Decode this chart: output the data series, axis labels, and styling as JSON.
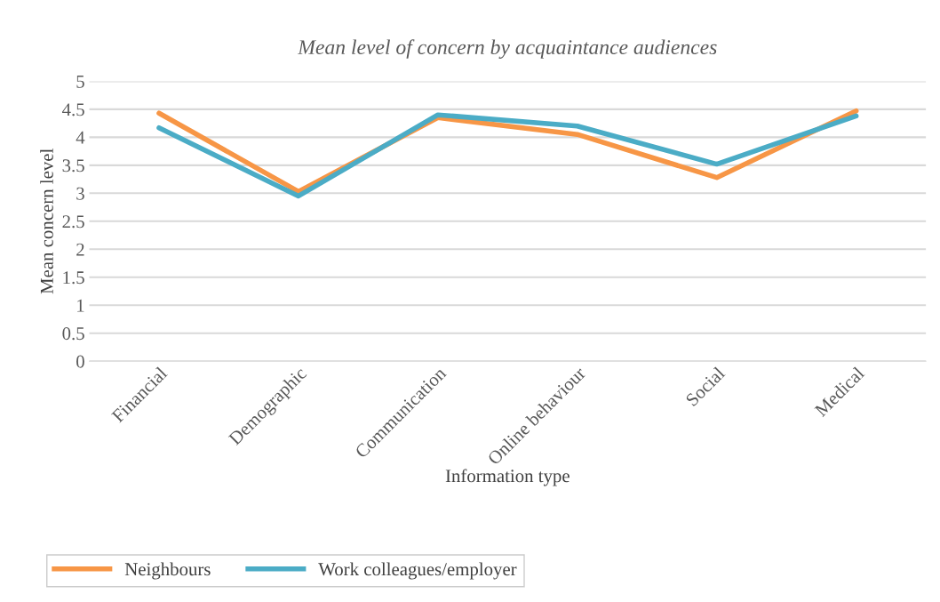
{
  "chart_data": {
    "type": "line",
    "title": "Mean level of concern by acquaintance audiences",
    "xlabel": "Information type",
    "ylabel": "Mean concern level",
    "categories": [
      "Financial",
      "Demographic",
      "Communication",
      "Online behaviour",
      "Social",
      "Medical"
    ],
    "series": [
      {
        "name": "Neighbours",
        "color": "#f79646",
        "values": [
          4.43,
          3.03,
          4.35,
          4.05,
          3.28,
          4.47
        ]
      },
      {
        "name": "Work colleagues/employer",
        "color": "#4bacc6",
        "values": [
          4.17,
          2.95,
          4.4,
          4.2,
          3.52,
          4.38
        ]
      }
    ],
    "ylim": [
      0,
      5
    ],
    "yticks": [
      0,
      0.5,
      1,
      1.5,
      2,
      2.5,
      3,
      3.5,
      4,
      4.5,
      5
    ],
    "grid": "y",
    "legend": "bottom"
  }
}
